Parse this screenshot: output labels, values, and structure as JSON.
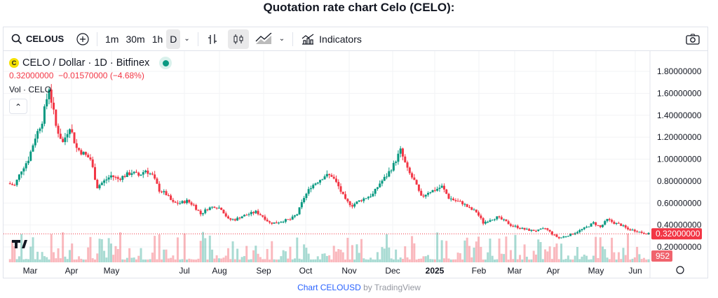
{
  "page_title": "Quotation rate chart Celo (CELO):",
  "toolbar": {
    "symbol": "CELOUSD",
    "intervals": [
      "1m",
      "30m",
      "1h",
      "D"
    ],
    "indicators": "Indicators"
  },
  "legend": {
    "name": "CELO / Dollar · 1D · Bitfinex",
    "last": "0.32000000",
    "change": "−0.01570000 (−4.68%)",
    "vol": "Vol · CELO"
  },
  "colors": {
    "up": "#089981",
    "down": "#f23645",
    "grid": "#f2f3f5"
  },
  "footer": {
    "link": "Chart CELOUSD",
    "suffix": " by TradingView"
  },
  "chart_data": {
    "type": "candlestick",
    "title": "CELO / Dollar · 1D · Bitfinex",
    "ylim": [
      0.1,
      1.85
    ],
    "y_ticks": [
      "1.80000000",
      "1.60000000",
      "1.40000000",
      "1.20000000",
      "1.00000000",
      "0.80000000",
      "0.60000000",
      "0.40000000",
      "0.20000000"
    ],
    "x_ticks": [
      "Mar",
      "Apr",
      "May",
      "Jul",
      "Aug",
      "Sep",
      "Oct",
      "Nov",
      "Dec",
      "2025",
      "Feb",
      "Mar",
      "Apr",
      "May",
      "Jun"
    ],
    "last_price_label": "0.32000000",
    "volume_label": "952",
    "approx_closes": [
      0.78,
      0.76,
      0.9,
      1.0,
      1.2,
      1.35,
      1.65,
      1.3,
      1.15,
      1.3,
      1.1,
      1.05,
      1.0,
      0.75,
      0.8,
      0.85,
      0.82,
      0.85,
      0.88,
      0.85,
      0.9,
      0.85,
      0.72,
      0.68,
      0.6,
      0.6,
      0.62,
      0.58,
      0.5,
      0.55,
      0.57,
      0.55,
      0.45,
      0.45,
      0.48,
      0.5,
      0.52,
      0.48,
      0.42,
      0.42,
      0.44,
      0.45,
      0.5,
      0.65,
      0.75,
      0.8,
      0.85,
      0.85,
      0.75,
      0.62,
      0.58,
      0.62,
      0.65,
      0.68,
      0.78,
      0.85,
      0.95,
      1.08,
      0.9,
      0.8,
      0.65,
      0.7,
      0.72,
      0.75,
      0.65,
      0.62,
      0.6,
      0.55,
      0.52,
      0.42,
      0.45,
      0.47,
      0.44,
      0.4,
      0.38,
      0.36,
      0.35,
      0.35,
      0.37,
      0.32,
      0.28,
      0.3,
      0.32,
      0.35,
      0.38,
      0.42,
      0.38,
      0.45,
      0.42,
      0.4,
      0.36,
      0.35,
      0.33,
      0.32
    ]
  }
}
